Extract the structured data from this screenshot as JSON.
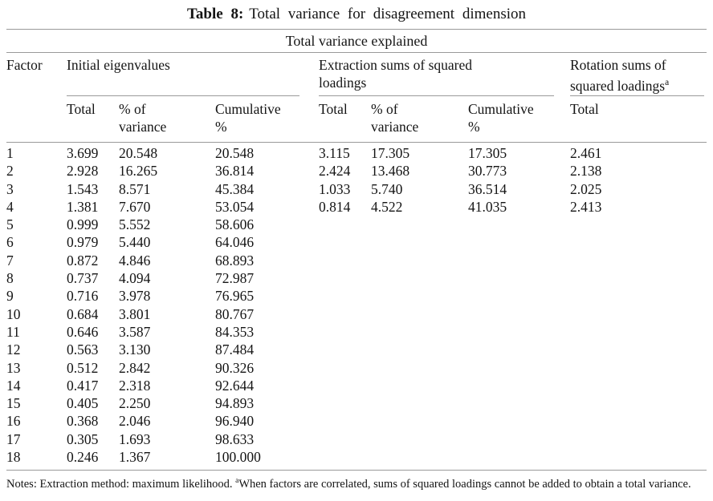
{
  "title": {
    "label": "Table 8:",
    "text": "Total variance for disagreement dimension"
  },
  "table": {
    "caption": "Total variance explained",
    "group_headers": [
      {
        "label": "Factor",
        "superscript": ""
      },
      {
        "label": "Initial eigenvalues",
        "superscript": ""
      },
      {
        "label": "Extraction sums of squared loadings",
        "superscript": ""
      },
      {
        "label": "Rotation sums of squared loadings",
        "superscript": "a"
      }
    ],
    "sub_headers": [
      "",
      "Total",
      "% of variance",
      "Cumulative %",
      "Total",
      "% of variance",
      "Cumulative %",
      "Total"
    ],
    "rows": [
      [
        "1",
        "3.699",
        "20.548",
        "20.548",
        "3.115",
        "17.305",
        "17.305",
        "2.461"
      ],
      [
        "2",
        "2.928",
        "16.265",
        "36.814",
        "2.424",
        "13.468",
        "30.773",
        "2.138"
      ],
      [
        "3",
        "1.543",
        "8.571",
        "45.384",
        "1.033",
        "5.740",
        "36.514",
        "2.025"
      ],
      [
        "4",
        "1.381",
        "7.670",
        "53.054",
        "0.814",
        "4.522",
        "41.035",
        "2.413"
      ],
      [
        "5",
        "0.999",
        "5.552",
        "58.606",
        "",
        "",
        "",
        ""
      ],
      [
        "6",
        "0.979",
        "5.440",
        "64.046",
        "",
        "",
        "",
        ""
      ],
      [
        "7",
        "0.872",
        "4.846",
        "68.893",
        "",
        "",
        "",
        ""
      ],
      [
        "8",
        "0.737",
        "4.094",
        "72.987",
        "",
        "",
        "",
        ""
      ],
      [
        "9",
        "0.716",
        "3.978",
        "76.965",
        "",
        "",
        "",
        ""
      ],
      [
        "10",
        "0.684",
        "3.801",
        "80.767",
        "",
        "",
        "",
        ""
      ],
      [
        "11",
        "0.646",
        "3.587",
        "84.353",
        "",
        "",
        "",
        ""
      ],
      [
        "12",
        "0.563",
        "3.130",
        "87.484",
        "",
        "",
        "",
        ""
      ],
      [
        "13",
        "0.512",
        "2.842",
        "90.326",
        "",
        "",
        "",
        ""
      ],
      [
        "14",
        "0.417",
        "2.318",
        "92.644",
        "",
        "",
        "",
        ""
      ],
      [
        "15",
        "0.405",
        "2.250",
        "94.893",
        "",
        "",
        "",
        ""
      ],
      [
        "16",
        "0.368",
        "2.046",
        "96.940",
        "",
        "",
        "",
        ""
      ],
      [
        "17",
        "0.305",
        "1.693",
        "98.633",
        "",
        "",
        "",
        ""
      ],
      [
        "18",
        "0.246",
        "1.367",
        "100.000",
        "",
        "",
        "",
        ""
      ]
    ]
  },
  "notes": {
    "prefix": "Notes: Extraction method: maximum likelihood. ",
    "superscript": "a",
    "text": "When factors are correlated, sums of squared loadings cannot be added to obtain a total variance.",
    "rule_color": "#9a9a9a"
  }
}
